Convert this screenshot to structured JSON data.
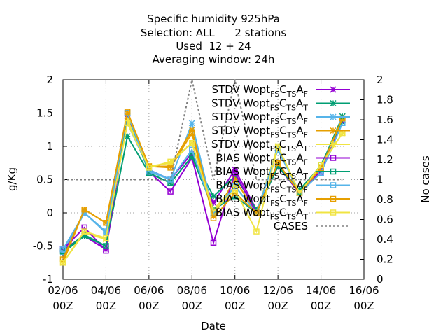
{
  "chart_data": {
    "type": "line",
    "title_lines": [
      "Specific humidity 925hPa",
      "Selection: ALL      2 stations",
      "Used  12 + 24",
      "Averaging window: 24h"
    ],
    "xlabel": "Date",
    "ylabel": "g/Kg",
    "y2label": "No cases",
    "ylim": [
      -1,
      2
    ],
    "y2lim": [
      0,
      2
    ],
    "yticks": [
      "-1",
      "-0.5",
      "0",
      "0.5",
      "1",
      "1.5",
      "2"
    ],
    "y2ticks": [
      "0",
      "0.2",
      "0.4",
      "0.6",
      "0.8",
      "1",
      "1.2",
      "1.4",
      "1.6",
      "1.8",
      "2"
    ],
    "xlim": [
      0,
      14
    ],
    "xticks": [
      {
        "x": 0,
        "line1": "02/06",
        "line2": "00Z"
      },
      {
        "x": 2,
        "line1": "04/06",
        "line2": "00Z"
      },
      {
        "x": 4,
        "line1": "06/06",
        "line2": "00Z"
      },
      {
        "x": 6,
        "line1": "08/06",
        "line2": "00Z"
      },
      {
        "x": 8,
        "line1": "10/06",
        "line2": "00Z"
      },
      {
        "x": 10,
        "line1": "12/06",
        "line2": "00Z"
      },
      {
        "x": 12,
        "line1": "14/06",
        "line2": "00Z"
      },
      {
        "x": 14,
        "line1": "16/06",
        "line2": "00Z"
      }
    ],
    "x": [
      0,
      1,
      2,
      3,
      4,
      5,
      6,
      7,
      8,
      9,
      10,
      11,
      12,
      13
    ],
    "grid": true,
    "legend_position": "top-right",
    "series": [
      {
        "name": "STDV Wopt FS C TS A F",
        "color": "#9400d3",
        "marker": "star",
        "axis": "y",
        "values": [
          -0.55,
          -0.35,
          -0.55,
          1.45,
          0.65,
          0.5,
          0.9,
          0.15,
          0.65,
          0.05,
          0.7,
          0.3,
          0.65,
          1.4
        ]
      },
      {
        "name": "STDV Wopt FS C TS A T",
        "color": "#009e73",
        "marker": "star",
        "axis": "y",
        "values": [
          -0.6,
          -0.35,
          -0.5,
          1.15,
          0.6,
          0.45,
          0.85,
          0.25,
          0.55,
          0.05,
          0.7,
          0.35,
          0.7,
          1.45
        ]
      },
      {
        "name": "STDV Wopt FS C TS A F",
        "color": "#56b4e9",
        "marker": "star",
        "axis": "y",
        "values": [
          -0.6,
          0.0,
          -0.3,
          1.35,
          0.65,
          0.5,
          1.35,
          0.0,
          0.4,
          0.0,
          1.0,
          0.3,
          0.6,
          1.4
        ]
      },
      {
        "name": "STDV Wopt FS C TS A F",
        "color": "#e69f00",
        "marker": "star",
        "axis": "y",
        "values": [
          -0.75,
          0.05,
          -0.15,
          1.5,
          0.7,
          0.7,
          1.25,
          -0.05,
          0.5,
          0.0,
          0.75,
          0.3,
          0.7,
          1.4
        ]
      },
      {
        "name": "STDV Wopt FS C TS A T",
        "color": "#f0e442",
        "marker": "star",
        "axis": "y",
        "values": [
          -0.75,
          -0.3,
          -0.4,
          1.4,
          0.7,
          0.75,
          1.05,
          0.05,
          0.4,
          0.0,
          1.0,
          0.3,
          0.7,
          1.2
        ]
      },
      {
        "name": "BIAS Wopt FS C TS A F",
        "color": "#9400d3",
        "marker": "square",
        "axis": "y",
        "values": [
          -0.55,
          -0.22,
          -0.57,
          1.5,
          0.62,
          0.32,
          0.83,
          -0.45,
          0.6,
          0.0,
          0.7,
          0.3,
          0.62,
          1.4
        ]
      },
      {
        "name": "BIAS Wopt FS C TS A T",
        "color": "#009e73",
        "marker": "square",
        "axis": "y",
        "values": [
          -0.58,
          -0.33,
          -0.5,
          1.5,
          0.6,
          0.45,
          0.85,
          0.05,
          0.25,
          0.0,
          0.7,
          0.32,
          0.72,
          1.38
        ]
      },
      {
        "name": "BIAS Wopt FS C TS A F",
        "color": "#56b4e9",
        "marker": "square",
        "axis": "y",
        "values": [
          -0.55,
          0.0,
          -0.28,
          1.5,
          0.62,
          0.5,
          0.95,
          0.0,
          0.4,
          0.0,
          0.95,
          0.3,
          0.6,
          1.35
        ]
      },
      {
        "name": "BIAS Wopt FS C TS A F",
        "color": "#e69f00",
        "marker": "square",
        "axis": "y",
        "values": [
          -0.7,
          0.05,
          -0.15,
          1.52,
          0.7,
          0.68,
          1.2,
          -0.08,
          0.3,
          0.0,
          0.75,
          0.3,
          0.67,
          1.42
        ]
      },
      {
        "name": "BIAS Wopt FS C TS A T",
        "color": "#f0e442",
        "marker": "square",
        "axis": "y",
        "values": [
          -0.75,
          -0.28,
          -0.38,
          1.35,
          0.68,
          0.77,
          1.05,
          0.02,
          0.35,
          -0.28,
          1.0,
          0.3,
          0.72,
          1.2
        ]
      },
      {
        "name": "CASES",
        "color": "#808080",
        "marker": "none",
        "axis": "y2",
        "dashed": true,
        "values": [
          1.0,
          1.0,
          1.0,
          1.0,
          1.0,
          1.0,
          2.0,
          1.0,
          2.0,
          1.0,
          1.0,
          1.0,
          1.0,
          1.0
        ]
      }
    ]
  }
}
